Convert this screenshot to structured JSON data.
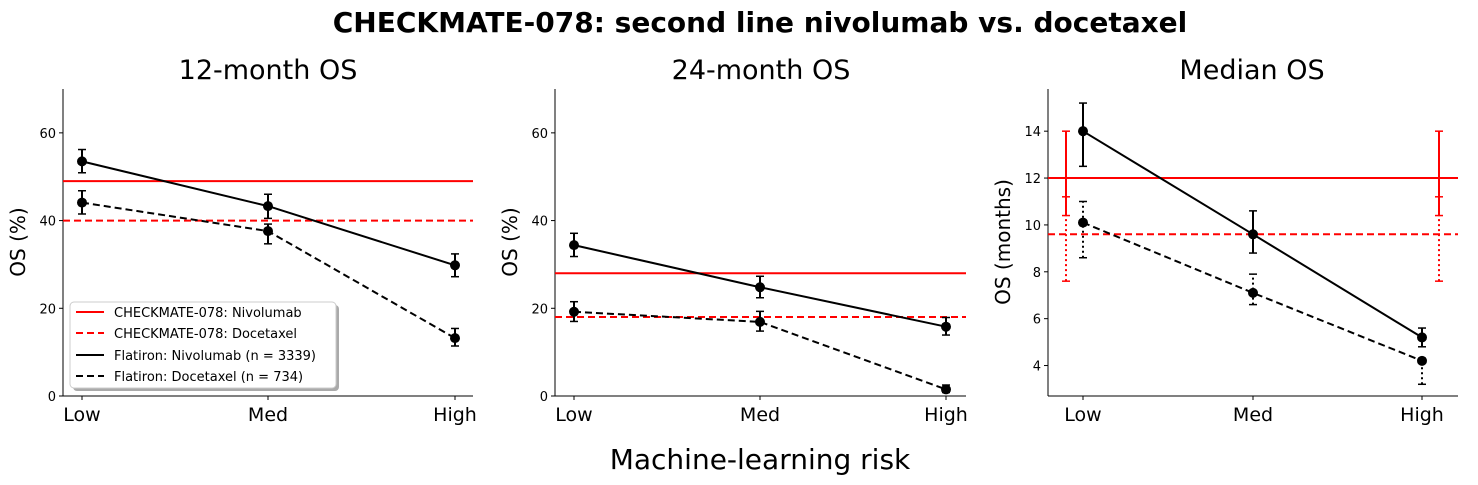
{
  "suptitle": "CHECKMATE-078: second line nivolumab vs. docetaxel",
  "xlabel": "Machine-learning risk",
  "colors": {
    "trial": "#ff0000",
    "flatiron": "#000000"
  },
  "chart_data": [
    {
      "type": "line",
      "title": "12-month OS",
      "ylabel": "OS (%)",
      "categories": [
        "Low",
        "Med",
        "High"
      ],
      "ylim": [
        0,
        70
      ],
      "yticks": [
        "0",
        "20",
        "40",
        "60"
      ],
      "grid": false,
      "legend_position": "lower-left",
      "series": [
        {
          "name": "Flatiron: Nivolumab (n = 3339)",
          "style": "solid",
          "values": [
            53.5,
            43.3,
            29.8
          ],
          "err_low": [
            50.9,
            40.5,
            27.2
          ],
          "err_high": [
            56.2,
            46.0,
            32.4
          ]
        },
        {
          "name": "Flatiron: Docetaxel (n = 734)",
          "style": "dashed",
          "values": [
            44.1,
            37.6,
            13.2
          ],
          "err_low": [
            41.5,
            34.7,
            11.4
          ],
          "err_high": [
            46.8,
            39.2,
            15.4
          ]
        }
      ],
      "reference_lines": [
        {
          "name": "CHECKMATE-078: Nivolumab",
          "style": "solid",
          "value": 49
        },
        {
          "name": "CHECKMATE-078: Docetaxel",
          "style": "dashed",
          "value": 40
        }
      ],
      "legend": [
        "CHECKMATE-078: Nivolumab",
        "CHECKMATE-078: Docetaxel",
        "Flatiron: Nivolumab (n = 3339)",
        "Flatiron: Docetaxel (n = 734)"
      ]
    },
    {
      "type": "line",
      "title": "24-month OS",
      "ylabel": "OS (%)",
      "categories": [
        "Low",
        "Med",
        "High"
      ],
      "ylim": [
        0,
        70
      ],
      "yticks": [
        "0",
        "20",
        "40",
        "60"
      ],
      "grid": false,
      "series": [
        {
          "name": "Flatiron: Nivolumab (n = 3339)",
          "style": "solid",
          "values": [
            34.4,
            24.8,
            15.8
          ],
          "err_low": [
            31.8,
            22.4,
            13.9
          ],
          "err_high": [
            37.1,
            27.3,
            17.9
          ]
        },
        {
          "name": "Flatiron: Docetaxel (n = 734)",
          "style": "dashed",
          "values": [
            19.2,
            16.9,
            1.5
          ],
          "err_low": [
            17.0,
            14.8,
            0.8
          ],
          "err_high": [
            21.5,
            19.3,
            2.5
          ]
        }
      ],
      "reference_lines": [
        {
          "name": "CHECKMATE-078: Nivolumab",
          "style": "solid",
          "value": 28
        },
        {
          "name": "CHECKMATE-078: Docetaxel",
          "style": "dashed",
          "value": 18
        }
      ]
    },
    {
      "type": "line",
      "title": "Median OS",
      "ylabel": "OS (months)",
      "categories": [
        "Low",
        "Med",
        "High"
      ],
      "ylim": [
        2.7,
        15.8
      ],
      "yticks": [
        "4",
        "6",
        "8",
        "10",
        "12",
        "14"
      ],
      "grid": false,
      "series": [
        {
          "name": "Flatiron: Nivolumab (n = 3339)",
          "style": "solid",
          "values": [
            14.0,
            9.6,
            5.2
          ],
          "err_low": [
            12.5,
            8.8,
            4.8
          ],
          "err_high": [
            15.2,
            10.6,
            5.6
          ]
        },
        {
          "name": "Flatiron: Docetaxel (n = 734)",
          "style": "dashed",
          "values": [
            10.1,
            7.1,
            4.2
          ],
          "err_low": [
            8.6,
            6.6,
            3.2
          ],
          "err_high": [
            11.0,
            7.9,
            4.3
          ]
        }
      ],
      "reference_lines": [
        {
          "name": "CHECKMATE-078: Nivolumab",
          "style": "solid",
          "value": 12.0,
          "err_low": 10.4,
          "err_high": 14.0
        },
        {
          "name": "CHECKMATE-078: Docetaxel",
          "style": "dashed",
          "value": 9.6,
          "err_low": 7.6,
          "err_high": 11.2
        }
      ]
    }
  ]
}
